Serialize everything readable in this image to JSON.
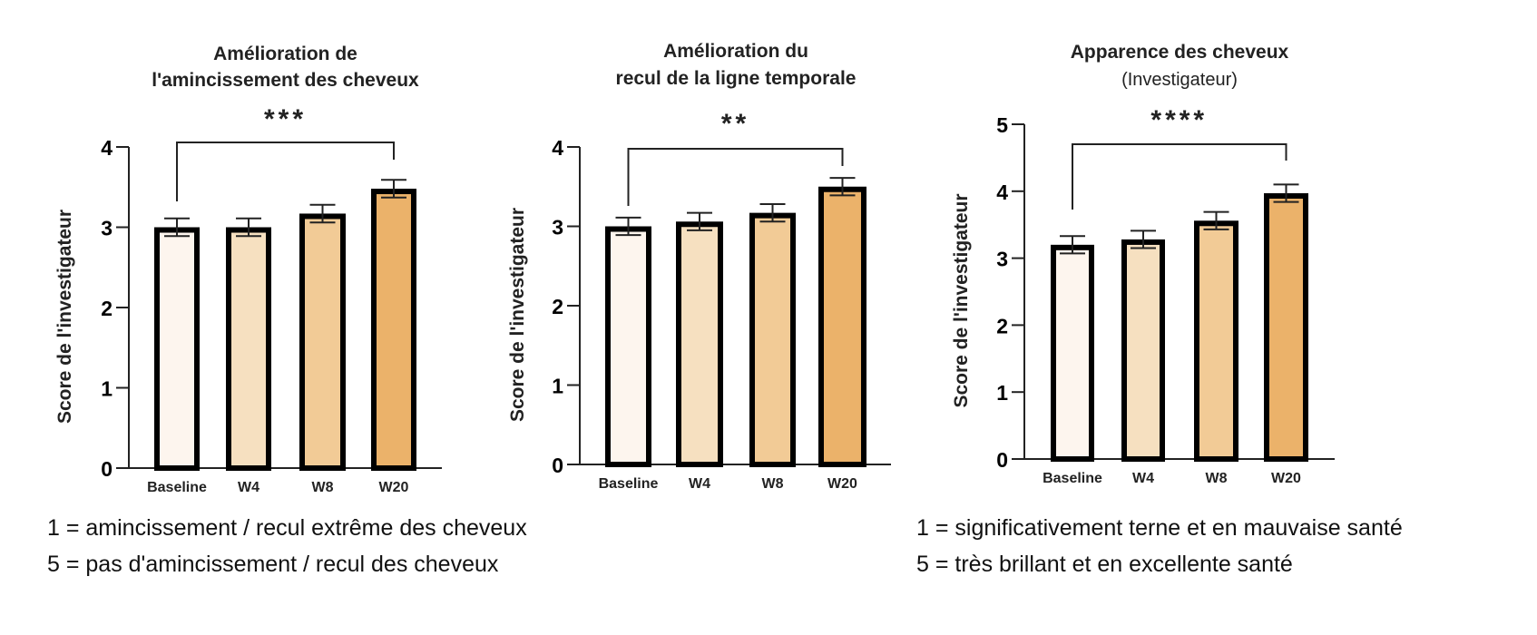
{
  "chart_data": [
    {
      "type": "bar",
      "title": [
        "Amélioration de",
        "l'amincissement des cheveux"
      ],
      "subtitle": "",
      "ylabel": "Score de l'investigateur",
      "xlabel": "",
      "categories": [
        "Baseline",
        "W4",
        "W8",
        "W20"
      ],
      "values": [
        3.0,
        3.0,
        3.17,
        3.48
      ],
      "errors": [
        0.11,
        0.11,
        0.11,
        0.11
      ],
      "ylim": [
        0,
        4
      ],
      "yticks": [
        "0",
        "1",
        "2",
        "3",
        "4"
      ],
      "significance": {
        "from": "Baseline",
        "to": "W20",
        "label": "***"
      },
      "colors": [
        "#fdf5ee",
        "#f6e0c0",
        "#f2cb96",
        "#ebb26a"
      ],
      "grid": false
    },
    {
      "type": "bar",
      "title": [
        "Amélioration du",
        "recul de la ligne temporale"
      ],
      "subtitle": "",
      "ylabel": "Score de l'investigateur",
      "xlabel": "",
      "categories": [
        "Baseline",
        "W4",
        "W8",
        "W20"
      ],
      "values": [
        3.0,
        3.06,
        3.17,
        3.5
      ],
      "errors": [
        0.11,
        0.11,
        0.11,
        0.11
      ],
      "ylim": [
        0,
        4
      ],
      "yticks": [
        "0",
        "1",
        "2",
        "3",
        "4"
      ],
      "significance": {
        "from": "Baseline",
        "to": "W20",
        "label": "**"
      },
      "colors": [
        "#fdf5ee",
        "#f6e0c0",
        "#f2cb96",
        "#ebb26a"
      ],
      "grid": false
    },
    {
      "type": "bar",
      "title": [
        "Apparence des cheveux"
      ],
      "subtitle": "(Investigateur)",
      "ylabel": "Score de l'investigateur",
      "xlabel": "",
      "categories": [
        "Baseline",
        "W4",
        "W8",
        "W20"
      ],
      "values": [
        3.2,
        3.28,
        3.56,
        3.97
      ],
      "errors": [
        0.13,
        0.13,
        0.13,
        0.13
      ],
      "ylim": [
        0,
        5
      ],
      "yticks": [
        "0",
        "1",
        "2",
        "3",
        "4",
        "5"
      ],
      "significance": {
        "from": "Baseline",
        "to": "W20",
        "label": "****"
      },
      "colors": [
        "#fdf5ee",
        "#f6e0c0",
        "#f2cb96",
        "#ebb26a"
      ],
      "grid": false
    }
  ],
  "notes": {
    "left": [
      "1 = amincissement / recul extrême des cheveux",
      "5 = pas d'amincissement / recul des cheveux"
    ],
    "right": [
      "1 = significativement terne et en mauvaise santé",
      "5 = très brillant et en excellente santé"
    ]
  }
}
